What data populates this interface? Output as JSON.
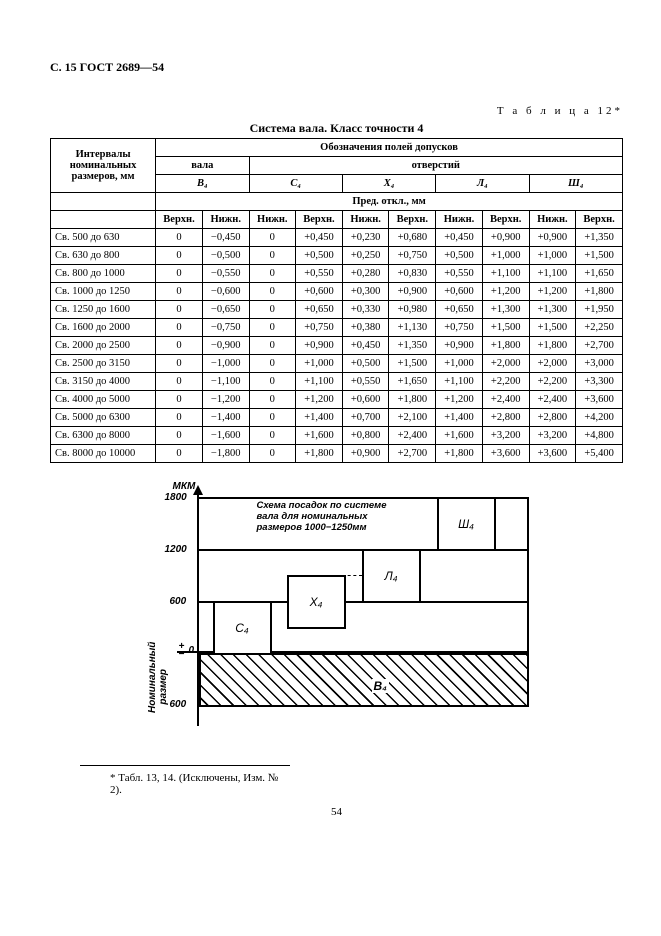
{
  "header": "С. 15 ГОСТ 2689—54",
  "table_label": "Т а б л и ц а   12*",
  "title": "Система вала. Класс точности 4",
  "colgroups": {
    "top": "Обозначения полей допусков",
    "left_group": "вала",
    "right_group": "отверстий",
    "interval_label_1": "Интервалы",
    "interval_label_2": "номинальных",
    "interval_label_3": "размеров, мм",
    "dev_label": "Пред. откл., мм"
  },
  "col_syms": [
    "В₄",
    "С₄",
    "Х₄",
    "Л₄",
    "Ш₄"
  ],
  "subheads": [
    "Верхн.",
    "Нижн.",
    "Нижн.",
    "Верхн.",
    "Нижн.",
    "Верхн.",
    "Нижн.",
    "Верхн.",
    "Нижн.",
    "Верхн."
  ],
  "rows": [
    {
      "l": "Св. 500 до 630",
      "v": [
        "0",
        "−0,450",
        "0",
        "+0,450",
        "+0,230",
        "+0,680",
        "+0,450",
        "+0,900",
        "+0,900",
        "+1,350"
      ]
    },
    {
      "l": "Св. 630 до 800",
      "v": [
        "0",
        "−0,500",
        "0",
        "+0,500",
        "+0,250",
        "+0,750",
        "+0,500",
        "+1,000",
        "+1,000",
        "+1,500"
      ]
    },
    {
      "l": "Св. 800 до 1000",
      "v": [
        "0",
        "−0,550",
        "0",
        "+0,550",
        "+0,280",
        "+0,830",
        "+0,550",
        "+1,100",
        "+1,100",
        "+1,650"
      ]
    },
    {
      "l": "Св. 1000 до 1250",
      "v": [
        "0",
        "−0,600",
        "0",
        "+0,600",
        "+0,300",
        "+0,900",
        "+0,600",
        "+1,200",
        "+1,200",
        "+1,800"
      ]
    },
    {
      "l": "Св. 1250 до 1600",
      "v": [
        "0",
        "−0,650",
        "0",
        "+0,650",
        "+0,330",
        "+0,980",
        "+0,650",
        "+1,300",
        "+1,300",
        "+1,950"
      ]
    },
    {
      "l": "Св. 1600 до 2000",
      "v": [
        "0",
        "−0,750",
        "0",
        "+0,750",
        "+0,380",
        "+1,130",
        "+0,750",
        "+1,500",
        "+1,500",
        "+2,250"
      ]
    },
    {
      "l": "Св. 2000 до 2500",
      "v": [
        "0",
        "−0,900",
        "0",
        "+0,900",
        "+0,450",
        "+1,350",
        "+0,900",
        "+1,800",
        "+1,800",
        "+2,700"
      ]
    },
    {
      "l": "Св. 2500 до 3150",
      "v": [
        "0",
        "−1,000",
        "0",
        "+1,000",
        "+0,500",
        "+1,500",
        "+1,000",
        "+2,000",
        "+2,000",
        "+3,000"
      ]
    },
    {
      "l": "Св. 3150 до 4000",
      "v": [
        "0",
        "−1,100",
        "0",
        "+1,100",
        "+0,550",
        "+1,650",
        "+1,100",
        "+2,200",
        "+2,200",
        "+3,300"
      ]
    },
    {
      "l": "Св. 4000 до 5000",
      "v": [
        "0",
        "−1,200",
        "0",
        "+1,200",
        "+0,600",
        "+1,800",
        "+1,200",
        "+2,400",
        "+2,400",
        "+3,600"
      ]
    },
    {
      "l": "Св. 5000 до 6300",
      "v": [
        "0",
        "−1,400",
        "0",
        "+1,400",
        "+0,700",
        "+2,100",
        "+1,400",
        "+2,800",
        "+2,800",
        "+4,200"
      ]
    },
    {
      "l": "Св. 6300 до 8000",
      "v": [
        "0",
        "−1,600",
        "0",
        "+1,600",
        "+0,800",
        "+2,400",
        "+1,600",
        "+3,200",
        "+3,200",
        "+4,800"
      ]
    },
    {
      "l": "Св. 8000 до 10000",
      "v": [
        "0",
        "−1,800",
        "0",
        "+1,800",
        "+0,900",
        "+2,700",
        "+1,800",
        "+3,600",
        "+3,600",
        "+5,400"
      ]
    }
  ],
  "diagram": {
    "unit": "МКМ",
    "yticks": [
      "1800",
      "1200",
      "600",
      "0",
      "600"
    ],
    "zero_prefix": "+\n−",
    "boxes": {
      "C": "С₄",
      "X": "Х₄",
      "L": "Л₄",
      "Sh": "Ш₄",
      "V": "В₄"
    },
    "note1": "Схема посадок по системе",
    "note2": "вала для номинальных",
    "note3": "размеров 1000−1250мм",
    "ylabel": "Номинальный\nразмер"
  },
  "footnote": "* Табл. 13, 14. (Исключены, Изм. № 2).",
  "page_number": "54"
}
